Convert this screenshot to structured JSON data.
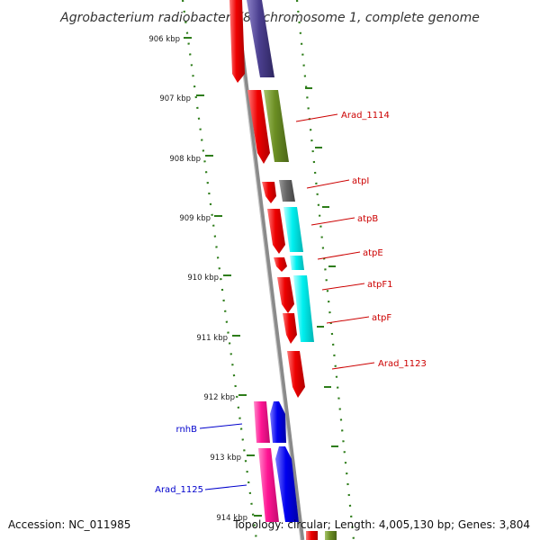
{
  "title": "Agrobacterium radiobacter K84 chromosome 1, complete genome",
  "footer": {
    "accession": "Accession: NC_011985",
    "summary": "Topology: circular; Length: 4,005,130 bp; Genes: 3,804"
  },
  "ticks": [
    "906 kbp",
    "907 kbp",
    "908 kbp",
    "909 kbp",
    "910 kbp",
    "911 kbp",
    "912 kbp",
    "913 kbp",
    "914 kbp"
  ],
  "gene_labels": [
    {
      "id": "arad_1114",
      "text": "Arad_1114",
      "strand": "forward"
    },
    {
      "id": "atpi",
      "text": "atpI",
      "strand": "forward"
    },
    {
      "id": "atpb",
      "text": "atpB",
      "strand": "forward"
    },
    {
      "id": "atpe",
      "text": "atpE",
      "strand": "forward"
    },
    {
      "id": "atpf1",
      "text": "atpF1",
      "strand": "forward"
    },
    {
      "id": "atpf",
      "text": "atpF",
      "strand": "forward"
    },
    {
      "id": "arad_1123",
      "text": "Arad_1123",
      "strand": "forward"
    },
    {
      "id": "rnhb",
      "text": "rnhB",
      "strand": "reverse"
    },
    {
      "id": "arad_1125",
      "text": "Arad_1125",
      "strand": "reverse"
    }
  ],
  "colors": {
    "forward_label": "#cc0000",
    "reverse_label": "#0000cc",
    "tick": "#2e7d1a",
    "backbone": "#8a8a8a",
    "cds_red": "#ee0000",
    "green_feature": "#6b8e23",
    "purple_feature": "#4b3f8f",
    "gray_feature": "#666666",
    "cyan_feature": "#00f0f0",
    "pink_feature": "#ff1493",
    "blue_feature": "#0000ee"
  }
}
